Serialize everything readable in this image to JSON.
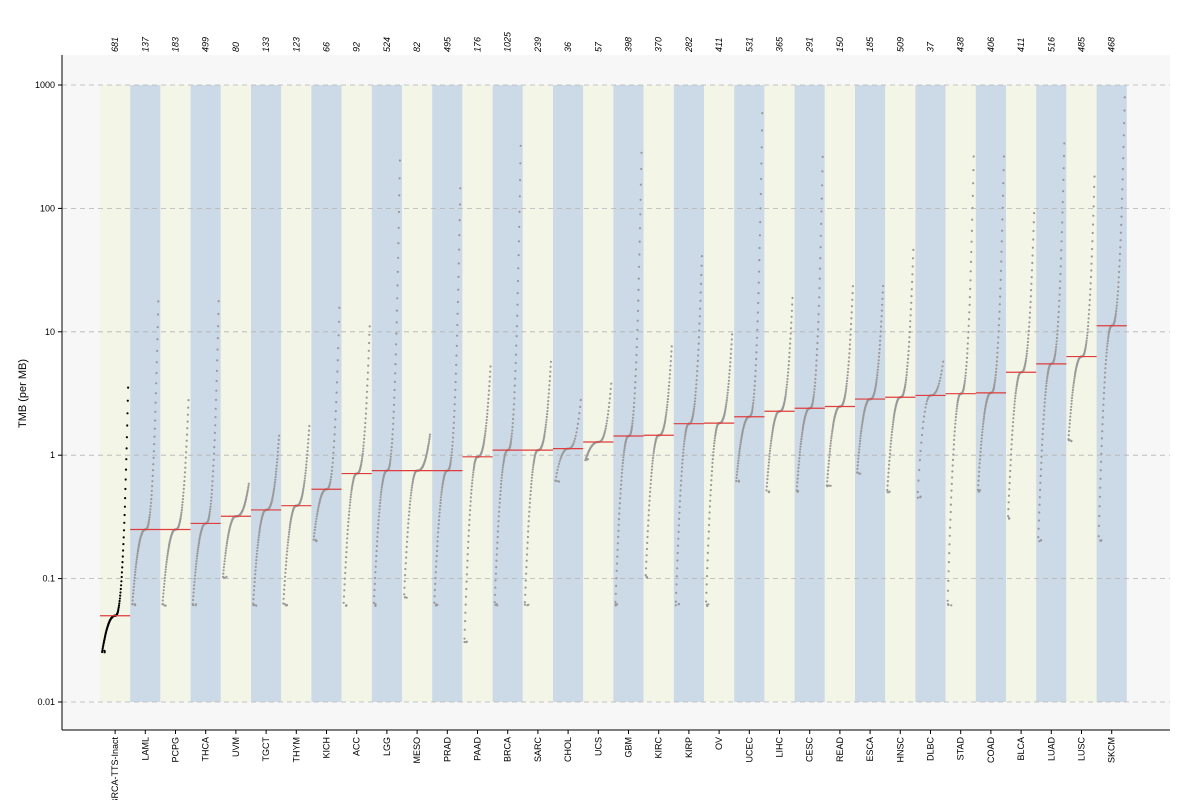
{
  "chart_data": {
    "type": "scatter",
    "title": "",
    "xlabel": "",
    "ylabel": "TMB (per MB)",
    "yscale": "log",
    "ylim": [
      0.01,
      1000
    ],
    "yticks": [
      0.01,
      0.1,
      1,
      10,
      100,
      1000
    ],
    "ytick_labels": [
      "0.01",
      "0.1",
      "1",
      "10",
      "100",
      "1000"
    ],
    "grid": "horizontal-dashed",
    "band_colors": [
      "#f3f5e6",
      "#ccd9e6"
    ],
    "point_color": "#999999",
    "highlight_point_color": "#000000",
    "median_color": "#e03c3c",
    "panel_background": "#f7f7f7",
    "categories": [
      "BRCA-TTS-Inact",
      "LAML",
      "PCPG",
      "THCA",
      "UVM",
      "TGCT",
      "THYM",
      "KICH",
      "ACC",
      "LGG",
      "MESO",
      "PRAD",
      "PAAD",
      "BRCA",
      "SARC",
      "CHOL",
      "UCS",
      "GBM",
      "KIRC",
      "KIRP",
      "OV",
      "UCEC",
      "LIHC",
      "CESC",
      "READ",
      "ESCA",
      "HNSC",
      "DLBC",
      "STAD",
      "COAD",
      "BLCA",
      "LUAD",
      "LUSC",
      "SKCM"
    ],
    "counts": [
      "681",
      "137",
      "183",
      "499",
      "80",
      "133",
      "123",
      "66",
      "92",
      "524",
      "82",
      "495",
      "176",
      "1025",
      "239",
      "36",
      "57",
      "398",
      "370",
      "282",
      "411",
      "531",
      "365",
      "291",
      "150",
      "185",
      "509",
      "37",
      "438",
      "406",
      "411",
      "516",
      "485",
      "468"
    ],
    "medians": [
      0.05,
      0.25,
      0.25,
      0.28,
      0.32,
      0.36,
      0.39,
      0.53,
      0.71,
      0.75,
      0.75,
      0.75,
      0.97,
      1.1,
      1.1,
      1.13,
      1.28,
      1.43,
      1.45,
      1.8,
      1.82,
      2.05,
      2.27,
      2.4,
      2.48,
      2.85,
      2.95,
      3.05,
      3.15,
      3.2,
      4.7,
      5.5,
      6.3,
      11.2
    ],
    "ranges": [
      [
        0.025,
        4
      ],
      [
        0.06,
        20
      ],
      [
        0.06,
        3
      ],
      [
        0.06,
        20
      ],
      [
        0.1,
        0.6
      ],
      [
        0.06,
        1.5
      ],
      [
        0.06,
        1.8
      ],
      [
        0.2,
        18
      ],
      [
        0.06,
        12
      ],
      [
        0.06,
        290
      ],
      [
        0.07,
        1.5
      ],
      [
        0.06,
        170
      ],
      [
        0.03,
        5.5
      ],
      [
        0.06,
        380
      ],
      [
        0.06,
        6
      ],
      [
        0.6,
        3
      ],
      [
        0.9,
        4
      ],
      [
        0.06,
        330
      ],
      [
        0.1,
        8
      ],
      [
        0.06,
        45
      ],
      [
        0.06,
        10
      ],
      [
        0.6,
        700
      ],
      [
        0.5,
        20
      ],
      [
        0.5,
        300
      ],
      [
        0.55,
        25
      ],
      [
        0.7,
        25
      ],
      [
        0.5,
        50
      ],
      [
        0.45,
        6
      ],
      [
        0.06,
        300
      ],
      [
        0.5,
        300
      ],
      [
        0.3,
        100
      ],
      [
        0.2,
        380
      ],
      [
        1.3,
        200
      ],
      [
        0.2,
        900
      ]
    ]
  }
}
